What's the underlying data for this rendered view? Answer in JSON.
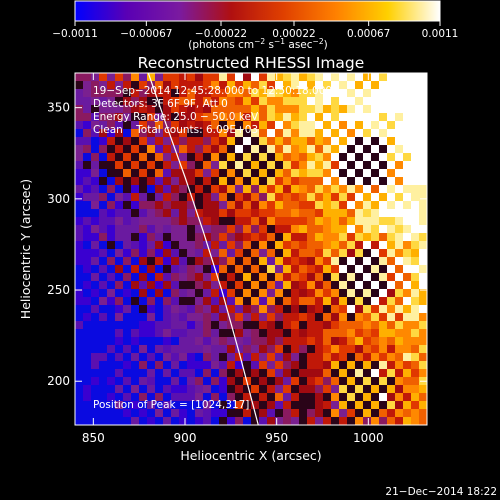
{
  "chart_data": {
    "type": "heatmap",
    "title": "Reconstructed RHESSI Image",
    "xlabel": "Heliocentric X (arcsec)",
    "ylabel": "Heliocentric Y (arcsec)",
    "xlim": [
      840,
      1032
    ],
    "ylim": [
      176,
      369
    ],
    "x_ticks": [
      "850",
      "900",
      "950",
      "1000"
    ],
    "x_tick_values": [
      850,
      900,
      950,
      1000
    ],
    "y_ticks": [
      "200",
      "250",
      "300",
      "350"
    ],
    "y_tick_values": [
      200,
      250,
      300,
      350
    ],
    "colorbar": {
      "ticks": [
        "−0.0011",
        "−0.00067",
        "−0.00022",
        "0.00022",
        "0.00067",
        "0.0011"
      ],
      "tick_values": [
        -0.0011,
        -0.00067,
        -0.00022,
        0.00022,
        0.00067,
        0.0011
      ],
      "range": [
        -0.0011,
        0.0011
      ],
      "units_text": "(photons cm",
      "units_exp1": "−2",
      "units_mid": " s",
      "units_exp2": "−1",
      "units_end": " asec",
      "units_exp3": "−2",
      "units_close": ")",
      "colormap": [
        "#0000ff",
        "#5a00b4",
        "#7a1aa0",
        "#b01010",
        "#e04000",
        "#ff8000",
        "#ffd000",
        "#ffffff"
      ]
    },
    "annotations": {
      "line1": "19−Sep−2014 12:45:28.000 to 12:50:18.000",
      "line2": "Detectors: 3F 6F 9F, Att 0",
      "line3": "Energy Range: 25.0 − 50.0 keV",
      "line4": "Clean    Total counts: 6.09E+03",
      "peak": "Position of Peak = [1024,317]"
    },
    "limb_curve": {
      "x": [
        880,
        890,
        900,
        910,
        920,
        930,
        940
      ],
      "y": [
        369,
        340,
        312,
        282,
        250,
        214,
        176
      ]
    },
    "peak_position": [
      1024,
      317
    ]
  },
  "timestamp": "21−Dec−2014 18:22"
}
